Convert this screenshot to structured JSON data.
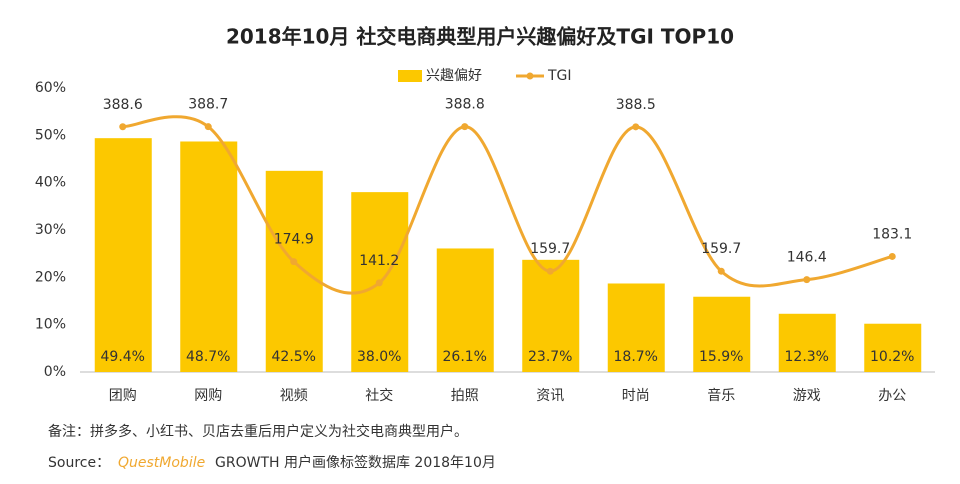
{
  "chart_data": {
    "type": "bar_line",
    "title": "2018年10月 社交电商典型用户兴趣偏好及TGI TOP10",
    "categories": [
      "团购",
      "网购",
      "视频",
      "社交",
      "拍照",
      "资讯",
      "时尚",
      "音乐",
      "游戏",
      "办公"
    ],
    "series": [
      {
        "name": "兴趣偏好",
        "color": "#fcc800",
        "type": "bar",
        "values": [
          49.4,
          48.7,
          42.5,
          38.0,
          26.1,
          23.7,
          18.7,
          15.9,
          12.3,
          10.2
        ],
        "value_labels": [
          "49.4%",
          "48.7%",
          "42.5%",
          "38.0%",
          "26.1%",
          "23.7%",
          "18.7%",
          "15.9%",
          "12.3%",
          "10.2%"
        ]
      },
      {
        "name": "TGI",
        "color": "#f0a830",
        "type": "line",
        "axis": "y2",
        "values": [
          388.6,
          388.7,
          174.9,
          141.2,
          388.8,
          159.7,
          388.5,
          159.7,
          146.4,
          183.1
        ]
      }
    ],
    "ylim": [
      0,
      60
    ],
    "yticks": [
      {
        "value": 0,
        "label": "0%"
      },
      {
        "value": 10,
        "label": "10%"
      },
      {
        "value": 20,
        "label": "20%"
      },
      {
        "value": 30,
        "label": "30%"
      },
      {
        "value": 40,
        "label": "40%"
      },
      {
        "value": 50,
        "label": "50%"
      },
      {
        "value": 60,
        "label": "60%"
      }
    ],
    "y2lim": [
      0,
      450
    ],
    "note": "备注：拼多多、小红书、贝店去重后用户定义为社交电商典型用户。",
    "source_label": "Source：",
    "source_brand": "QuestMobile",
    "source_text": "GROWTH 用户画像标签数据库 2018年10月"
  }
}
